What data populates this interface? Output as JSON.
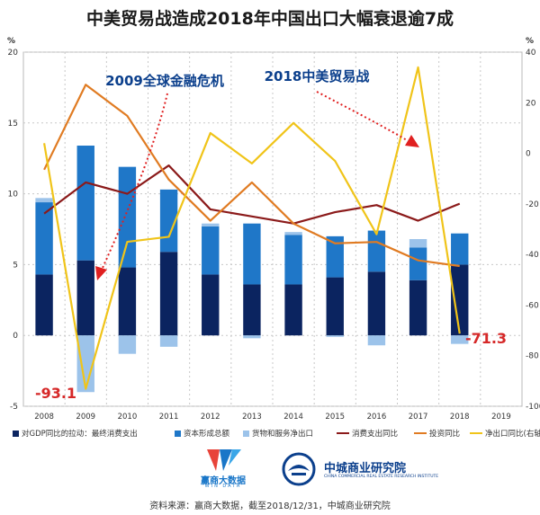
{
  "page": {
    "title": "中美贸易战造成2018年中国出口大幅衰退逾7成"
  },
  "chart_data": {
    "type": "bar+line",
    "title": "中美贸易战造成2018年中国出口大幅衰退逾7成",
    "categories": [
      "2008",
      "2009",
      "2010",
      "2011",
      "2012",
      "2013",
      "2014",
      "2015",
      "2016",
      "2017",
      "2018",
      "2019"
    ],
    "left_axis": {
      "unit": "%",
      "ylim": [
        -5,
        20
      ],
      "ticks": [
        "-5",
        "0",
        "5",
        "10",
        "15",
        "20"
      ],
      "tick_values": [
        -5,
        0,
        5,
        10,
        15,
        20
      ]
    },
    "right_axis": {
      "unit": "%",
      "ylim": [
        -100,
        40
      ],
      "ticks": [
        "-100",
        "-80",
        "-60",
        "-40",
        "-20",
        "0",
        "20",
        "40"
      ],
      "tick_values": [
        -100,
        -80,
        -60,
        -40,
        -20,
        0,
        20,
        40
      ]
    },
    "bar_series": [
      {
        "name": "对GDP同比的拉动：最终消费支出",
        "color": "#0b2460",
        "values": [
          4.3,
          5.3,
          4.8,
          5.9,
          4.3,
          3.6,
          3.6,
          4.1,
          4.5,
          3.9,
          5.0,
          null
        ]
      },
      {
        "name": "资本形成总额",
        "color": "#1f77c8",
        "values": [
          5.1,
          8.1,
          7.1,
          4.4,
          3.4,
          4.3,
          3.5,
          2.9,
          2.9,
          2.3,
          2.2,
          null
        ]
      },
      {
        "name": "货物和服务净出口",
        "color": "#9cc3ea",
        "values": [
          0.3,
          -4.0,
          -1.3,
          -0.8,
          0.2,
          -0.2,
          0.2,
          -0.1,
          -0.7,
          0.6,
          -0.6,
          null
        ]
      }
    ],
    "line_series": [
      {
        "name": "消费支出同比",
        "axis": "left",
        "color": "#8b1a1a",
        "values": [
          8.6,
          10.8,
          10.0,
          12.0,
          8.9,
          8.4,
          7.9,
          8.7,
          9.2,
          8.1,
          9.3,
          null
        ]
      },
      {
        "name": "投资同比",
        "axis": "left",
        "color": "#e07b22",
        "values": [
          11.7,
          17.7,
          15.5,
          11.0,
          8.1,
          10.8,
          7.9,
          6.5,
          6.6,
          5.3,
          4.9,
          null
        ]
      },
      {
        "name": "净出口同比(右轴)",
        "axis": "right",
        "color": "#f0c419",
        "values": [
          4.0,
          -93.1,
          -35.0,
          -33.0,
          8.0,
          -4.0,
          12.0,
          -3.0,
          -32.0,
          34.0,
          -71.3,
          null
        ]
      }
    ],
    "annotations": [
      {
        "text": "2009全球金融危机"
      },
      {
        "text": "2018中美贸易战"
      },
      {
        "text": "-93.1"
      },
      {
        "text": "-71.3"
      }
    ],
    "grid": true
  },
  "logos": {
    "winbrand": {
      "cn": "赢商大数据",
      "en": "WIN DATA"
    },
    "zc": {
      "cn": "中城商业研究院",
      "en": "CHINA COMMERCIAL REAL ESTATE RESEARCH INSTITUTE"
    }
  },
  "footer": {
    "source": "资料来源：赢商大数据，截至2018/12/31，中城商业研究院"
  }
}
